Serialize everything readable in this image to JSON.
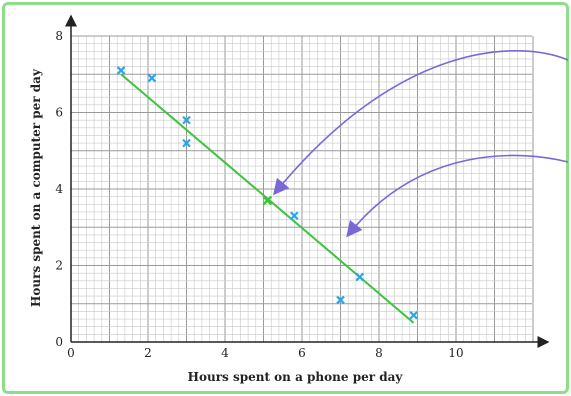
{
  "colors": {
    "frame_border": "#8fdc8a",
    "grid_minor": "#c8c8c8",
    "grid_major": "#9a9a9a",
    "axis": "#222222",
    "points": "#29a6e8",
    "best_fit": "#3cc43c",
    "arrows": "#7b68d6"
  },
  "chart_data": {
    "type": "scatter",
    "title": "",
    "xlabel": "Hours spent on a phone per day",
    "ylabel": "Hours spent on a computer per day",
    "xlim": [
      0,
      12
    ],
    "ylim": [
      0,
      8
    ],
    "x_ticks": [
      "0",
      "2",
      "4",
      "6",
      "8",
      "10"
    ],
    "y_ticks": [
      "0",
      "2",
      "4",
      "6",
      "8"
    ],
    "grid": "on",
    "series": [
      {
        "marker": "cross",
        "points": [
          {
            "x": 1.3,
            "y": 7.1
          },
          {
            "x": 2.1,
            "y": 6.9
          },
          {
            "x": 3.0,
            "y": 5.8
          },
          {
            "x": 3.0,
            "y": 5.2
          },
          {
            "x": 5.8,
            "y": 3.3
          },
          {
            "x": 7.0,
            "y": 1.1
          },
          {
            "x": 7.5,
            "y": 1.7
          },
          {
            "x": 8.9,
            "y": 0.7
          }
        ]
      }
    ],
    "best_fit_line": {
      "x1": 1.3,
      "y1": 7.0,
      "x2": 8.9,
      "y2": 0.5
    },
    "mean_point": {
      "x": 5.1,
      "y": 3.7
    },
    "annotation_arrows": [
      {
        "target": {
          "x": 5.3,
          "y": 3.9
        }
      },
      {
        "target": {
          "x": 7.2,
          "y": 2.8
        }
      }
    ]
  }
}
